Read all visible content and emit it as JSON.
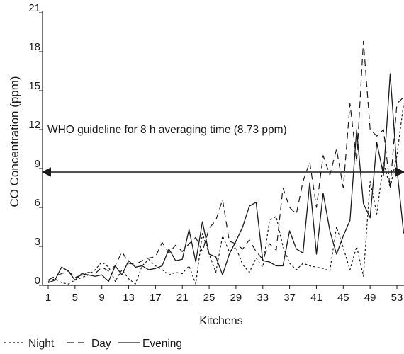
{
  "chart_data": {
    "type": "line",
    "xlabel": "Kitchens",
    "ylabel": "CO Concentration (ppm)",
    "xlim": [
      0,
      54
    ],
    "ylim": [
      0,
      21
    ],
    "x_ticks": [
      1,
      5,
      9,
      13,
      17,
      21,
      25,
      29,
      33,
      37,
      41,
      45,
      49,
      53
    ],
    "y_ticks": [
      0,
      3,
      6,
      9,
      12,
      15,
      18,
      21
    ],
    "annotation": {
      "text": "WHO guideline for 8 h averaging time (8.73 ppm)",
      "value": 8.73
    },
    "legend_position": "bottom-left",
    "series": [
      {
        "name": "Night",
        "style": "dotted",
        "x": [
          1,
          2,
          3,
          4,
          5,
          6,
          7,
          8,
          9,
          10,
          11,
          12,
          13,
          14,
          15,
          16,
          17,
          18,
          19,
          20,
          21,
          22,
          23,
          24,
          25,
          26,
          27,
          28,
          29,
          30,
          31,
          32,
          33,
          34,
          35,
          36,
          37,
          38,
          39,
          40,
          41,
          42,
          43,
          44,
          45,
          46,
          47,
          48,
          49,
          50,
          51,
          52,
          53,
          54
        ],
        "values": [
          0.3,
          0.5,
          0.2,
          0.1,
          0.4,
          0.6,
          0.8,
          1.2,
          1.8,
          1.4,
          0.3,
          1.2,
          0.5,
          0.1,
          1.5,
          2.0,
          1.5,
          1.2,
          0.8,
          1.0,
          0.9,
          1.5,
          0.1,
          4.0,
          2.4,
          1.0,
          3.8,
          2.6,
          2.9,
          1.6,
          1.0,
          2.1,
          1.4,
          5.0,
          5.3,
          3.0,
          1.7,
          1.2,
          1.7,
          1.5,
          1.4,
          1.3,
          1.1,
          4.5,
          2.9,
          1.2,
          3.0,
          0.7,
          8.0,
          5.5,
          9.5,
          7.5,
          10.0,
          14.0
        ]
      },
      {
        "name": "Day",
        "style": "dashed",
        "x": [
          1,
          2,
          3,
          4,
          5,
          6,
          7,
          8,
          9,
          10,
          11,
          12,
          13,
          14,
          15,
          16,
          17,
          18,
          19,
          20,
          21,
          22,
          23,
          24,
          25,
          26,
          27,
          28,
          29,
          30,
          31,
          32,
          33,
          34,
          35,
          36,
          37,
          38,
          39,
          40,
          41,
          42,
          43,
          44,
          45,
          46,
          47,
          48,
          49,
          50,
          51,
          52,
          53,
          54
        ],
        "values": [
          0.4,
          0.7,
          0.9,
          1.1,
          0.6,
          0.8,
          1.0,
          0.9,
          1.4,
          1.1,
          1.5,
          2.6,
          1.7,
          1.6,
          1.9,
          2.1,
          2.2,
          3.3,
          2.5,
          3.1,
          2.6,
          3.2,
          3.7,
          2.6,
          4.4,
          5.0,
          6.6,
          3.4,
          3.2,
          2.8,
          3.5,
          2.6,
          2.0,
          3.2,
          2.7,
          7.5,
          6.0,
          5.5,
          8.0,
          9.5,
          6.0,
          10.0,
          8.5,
          10.5,
          7.5,
          14.0,
          9.5,
          18.8,
          12.0,
          11.5,
          12.0,
          7.5,
          14.0,
          14.5
        ]
      },
      {
        "name": "Evening",
        "style": "solid",
        "x": [
          1,
          2,
          3,
          4,
          5,
          6,
          7,
          8,
          9,
          10,
          11,
          12,
          13,
          14,
          15,
          16,
          17,
          18,
          19,
          20,
          21,
          22,
          23,
          24,
          25,
          26,
          27,
          28,
          29,
          30,
          31,
          32,
          33,
          34,
          35,
          36,
          37,
          38,
          39,
          40,
          41,
          42,
          43,
          44,
          45,
          46,
          47,
          48,
          49,
          50,
          51,
          52,
          53,
          54
        ],
        "values": [
          0.2,
          0.4,
          1.4,
          1.1,
          0.4,
          0.9,
          0.8,
          0.7,
          0.8,
          0.3,
          1.5,
          0.8,
          1.9,
          1.4,
          1.5,
          1.2,
          1.3,
          1.5,
          2.8,
          1.9,
          2.0,
          4.3,
          1.8,
          4.9,
          2.4,
          2.2,
          0.8,
          2.4,
          3.4,
          4.5,
          6.1,
          6.4,
          1.9,
          1.8,
          1.5,
          1.5,
          4.2,
          2.8,
          2.5,
          7.9,
          2.4,
          7.1,
          4.2,
          2.4,
          3.8,
          5.0,
          12.0,
          6.3,
          5.2,
          11.0,
          8.5,
          16.3,
          9.0,
          4.0
        ]
      }
    ]
  }
}
